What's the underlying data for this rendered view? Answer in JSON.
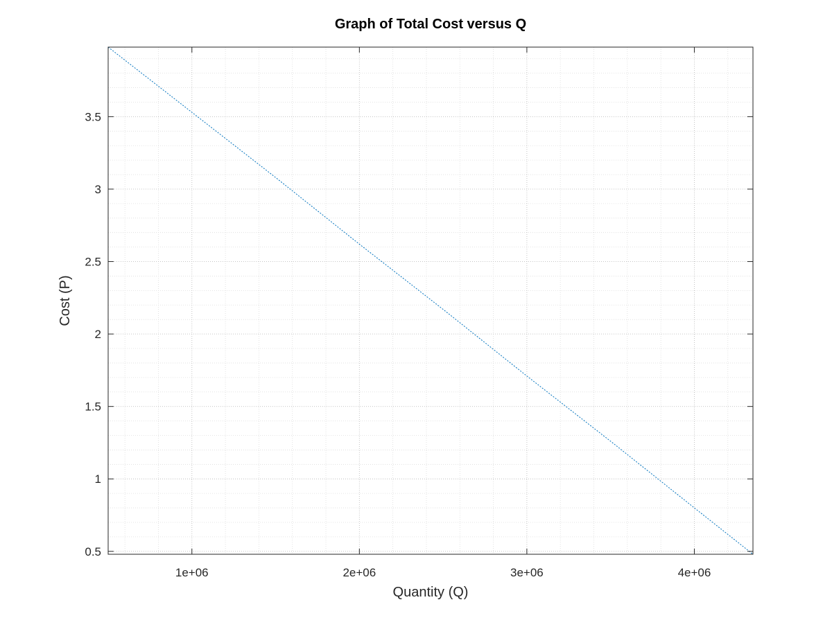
{
  "chart_data": {
    "type": "line",
    "title": "Graph of Total Cost versus Q",
    "xlabel": "Quantity (Q)",
    "ylabel": "Cost (P)",
    "xlim": [
      500000,
      4350000
    ],
    "ylim": [
      0.48,
      3.98
    ],
    "xticks": [
      1000000,
      2000000,
      3000000,
      4000000
    ],
    "xtick_labels": [
      "1e+06",
      "2e+06",
      "3e+06",
      "4e+06"
    ],
    "yticks": [
      0.5,
      1,
      1.5,
      2,
      2.5,
      3,
      3.5
    ],
    "ytick_labels": [
      "0.5",
      "1",
      "1.5",
      "2",
      "2.5",
      "3",
      "3.5"
    ],
    "grid": "major-and-minor",
    "series": [
      {
        "color": "#0072bd",
        "line_style": "dotted",
        "x": [
          500000,
          1000000,
          1500000,
          2000000,
          2500000,
          3000000,
          3500000,
          4000000,
          4350000
        ],
        "y": [
          3.98,
          3.53,
          3.08,
          2.62,
          2.17,
          1.71,
          1.26,
          0.8,
          0.48
        ]
      }
    ]
  }
}
